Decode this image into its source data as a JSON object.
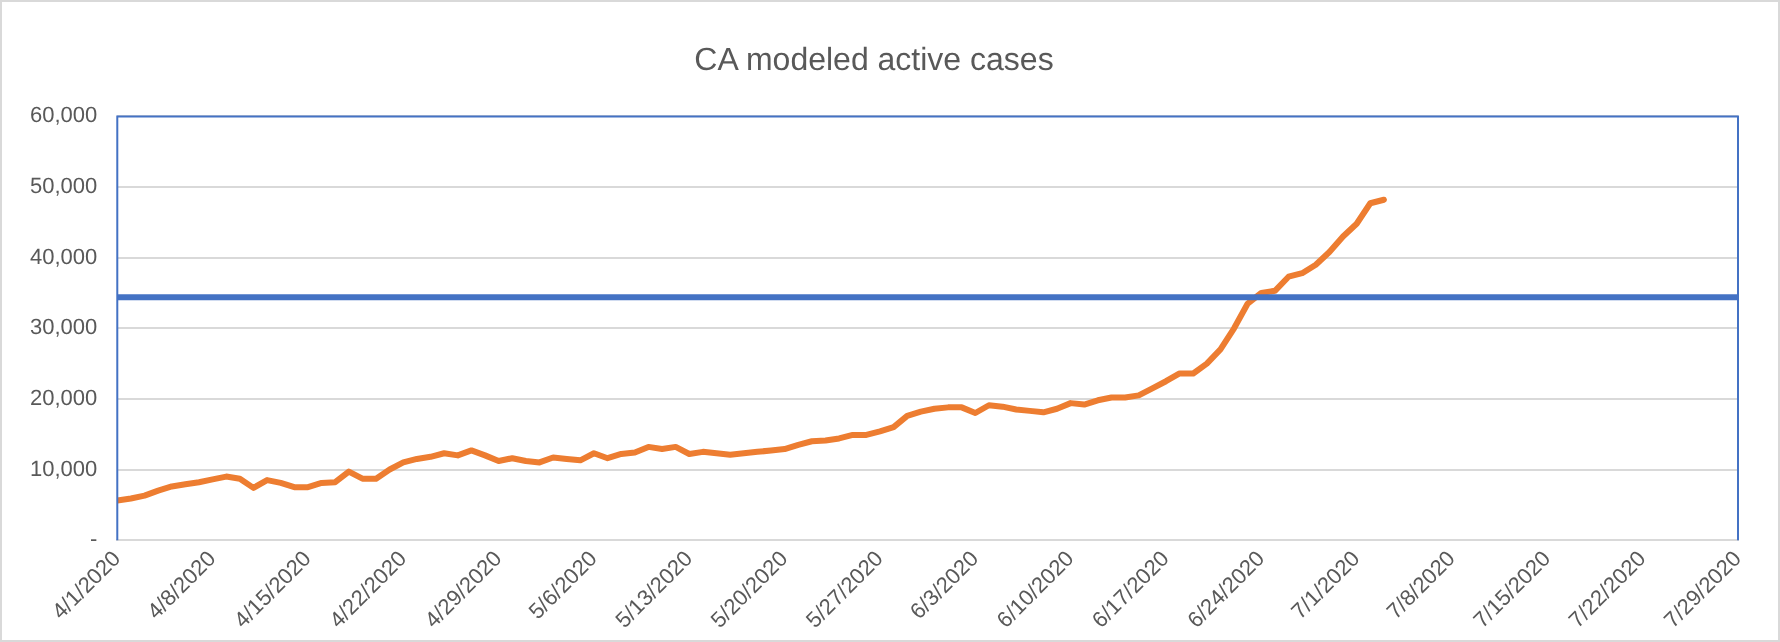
{
  "chart_data": {
    "type": "line",
    "title": "CA modeled active cases",
    "x": [
      "2020-04-01",
      "2020-04-02",
      "2020-04-03",
      "2020-04-04",
      "2020-04-05",
      "2020-04-06",
      "2020-04-07",
      "2020-04-08",
      "2020-04-09",
      "2020-04-10",
      "2020-04-11",
      "2020-04-12",
      "2020-04-13",
      "2020-04-14",
      "2020-04-15",
      "2020-04-16",
      "2020-04-17",
      "2020-04-18",
      "2020-04-19",
      "2020-04-20",
      "2020-04-21",
      "2020-04-22",
      "2020-04-23",
      "2020-04-24",
      "2020-04-25",
      "2020-04-26",
      "2020-04-27",
      "2020-04-28",
      "2020-04-29",
      "2020-04-30",
      "2020-05-01",
      "2020-05-02",
      "2020-05-03",
      "2020-05-04",
      "2020-05-05",
      "2020-05-06",
      "2020-05-07",
      "2020-05-08",
      "2020-05-09",
      "2020-05-10",
      "2020-05-11",
      "2020-05-12",
      "2020-05-13",
      "2020-05-14",
      "2020-05-15",
      "2020-05-16",
      "2020-05-17",
      "2020-05-18",
      "2020-05-19",
      "2020-05-20",
      "2020-05-21",
      "2020-05-22",
      "2020-05-23",
      "2020-05-24",
      "2020-05-25",
      "2020-05-26",
      "2020-05-27",
      "2020-05-28",
      "2020-05-29",
      "2020-05-30",
      "2020-05-31",
      "2020-06-01",
      "2020-06-02",
      "2020-06-03",
      "2020-06-04",
      "2020-06-05",
      "2020-06-06",
      "2020-06-07",
      "2020-06-08",
      "2020-06-09",
      "2020-06-10",
      "2020-06-11",
      "2020-06-12",
      "2020-06-13",
      "2020-06-14",
      "2020-06-15",
      "2020-06-16",
      "2020-06-17",
      "2020-06-18",
      "2020-06-19",
      "2020-06-20",
      "2020-06-21",
      "2020-06-22",
      "2020-06-23",
      "2020-06-24",
      "2020-06-25",
      "2020-06-26",
      "2020-06-27",
      "2020-06-28",
      "2020-06-29",
      "2020-06-30",
      "2020-07-01",
      "2020-07-02",
      "2020-07-03"
    ],
    "series": [
      {
        "color": "#ed7d31",
        "values": [
          5600,
          5900,
          6300,
          7000,
          7600,
          7900,
          8200,
          8600,
          9000,
          8700,
          7400,
          8500,
          8100,
          7500,
          7500,
          8100,
          8200,
          9700,
          8700,
          8700,
          10000,
          11000,
          11500,
          11800,
          12300,
          12000,
          12700,
          12000,
          11200,
          11600,
          11200,
          11000,
          11700,
          11500,
          11300,
          12300,
          11600,
          12200,
          12400,
          13200,
          12900,
          13200,
          12200,
          12500,
          12300,
          12100,
          12300,
          12500,
          12700,
          12900,
          13500,
          14000,
          14100,
          14400,
          14900,
          14900,
          15400,
          16000,
          17600,
          18200,
          18600,
          18800,
          18800,
          18000,
          19100,
          18900,
          18500,
          18300,
          18100,
          18600,
          19400,
          19200,
          19800,
          20200,
          20200,
          20500,
          21500,
          22500,
          23600,
          23600,
          25000,
          27000,
          30000,
          33500,
          35000,
          35300,
          37300,
          37800,
          39000,
          40800,
          43000,
          44800,
          47700,
          48200
        ]
      }
    ],
    "xlim": [
      "2020-04-01",
      "2020-07-29"
    ],
    "xticks": [
      {
        "value": "2020-04-01",
        "label": "4/1/2020"
      },
      {
        "value": "2020-04-08",
        "label": "4/8/2020"
      },
      {
        "value": "2020-04-15",
        "label": "4/15/2020"
      },
      {
        "value": "2020-04-22",
        "label": "4/22/2020"
      },
      {
        "value": "2020-04-29",
        "label": "4/29/2020"
      },
      {
        "value": "2020-05-06",
        "label": "5/6/2020"
      },
      {
        "value": "2020-05-13",
        "label": "5/13/2020"
      },
      {
        "value": "2020-05-20",
        "label": "5/20/2020"
      },
      {
        "value": "2020-05-27",
        "label": "5/27/2020"
      },
      {
        "value": "2020-06-03",
        "label": "6/3/2020"
      },
      {
        "value": "2020-06-10",
        "label": "6/10/2020"
      },
      {
        "value": "2020-06-17",
        "label": "6/17/2020"
      },
      {
        "value": "2020-06-24",
        "label": "6/24/2020"
      },
      {
        "value": "2020-07-01",
        "label": "7/1/2020"
      },
      {
        "value": "2020-07-08",
        "label": "7/8/2020"
      },
      {
        "value": "2020-07-15",
        "label": "7/15/2020"
      },
      {
        "value": "2020-07-22",
        "label": "7/22/2020"
      },
      {
        "value": "2020-07-29",
        "label": "7/29/2020"
      }
    ],
    "ylim": [
      0,
      60000
    ],
    "yticks": [
      {
        "value": 0,
        "label": "-"
      },
      {
        "value": 10000,
        "label": "10,000"
      },
      {
        "value": 20000,
        "label": "20,000"
      },
      {
        "value": 30000,
        "label": "30,000"
      },
      {
        "value": 40000,
        "label": "40,000"
      },
      {
        "value": 50000,
        "label": "50,000"
      },
      {
        "value": 60000,
        "label": "60,000"
      }
    ],
    "ref_lines": [
      {
        "axis": "y",
        "value": 34400,
        "color": "#4472c4"
      }
    ],
    "grid": "y",
    "legend": false,
    "marker": "none",
    "line_style": "solid"
  }
}
